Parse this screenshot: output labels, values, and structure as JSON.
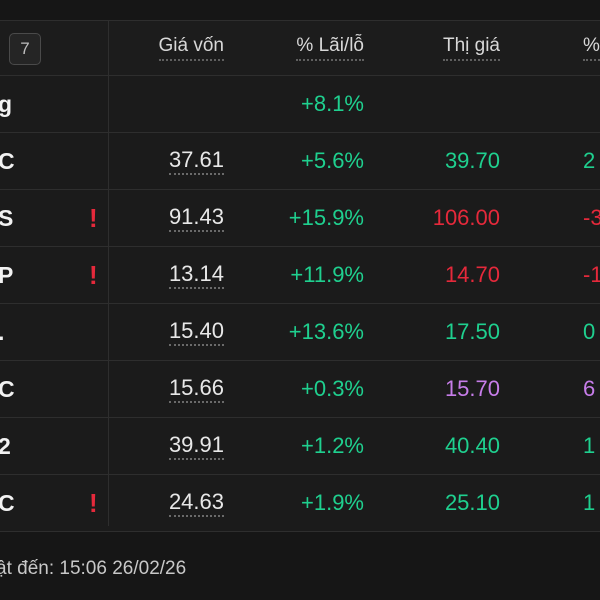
{
  "header": {
    "badge": "7",
    "col_cost": "Giá vốn",
    "col_pl": "% Lãi/lỗ",
    "col_market": "Thị giá",
    "col_pct": "% Th"
  },
  "total_row": {
    "symbol": "g",
    "pl": "+8.1%"
  },
  "rows": [
    {
      "symbol": "C",
      "warn": "",
      "cost": "37.61",
      "pl": "+5.6%",
      "market": "39.70",
      "market_color": "green",
      "pct": "2",
      "pct_color": "green"
    },
    {
      "symbol": "S",
      "warn": "!",
      "cost": "91.43",
      "pl": "+15.9%",
      "market": "106.00",
      "market_color": "red",
      "pct": "-3",
      "pct_color": "red"
    },
    {
      "symbol": "P",
      "warn": "!",
      "cost": "13.14",
      "pl": "+11.9%",
      "market": "14.70",
      "market_color": "red",
      "pct": "-1",
      "pct_color": "red"
    },
    {
      "symbol": ".",
      "warn": "",
      "cost": "15.40",
      "pl": "+13.6%",
      "market": "17.50",
      "market_color": "green",
      "pct": "0",
      "pct_color": "green"
    },
    {
      "symbol": "C",
      "warn": "",
      "cost": "15.66",
      "pl": "+0.3%",
      "market": "15.70",
      "market_color": "purple",
      "pct": "6",
      "pct_color": "purple"
    },
    {
      "symbol": "2",
      "warn": "",
      "cost": "39.91",
      "pl": "+1.2%",
      "market": "40.40",
      "market_color": "green",
      "pct": "1",
      "pct_color": "green"
    },
    {
      "symbol": "C",
      "warn": "!",
      "cost": "24.63",
      "pl": "+1.9%",
      "market": "25.10",
      "market_color": "green",
      "pct": "1",
      "pct_color": "green"
    }
  ],
  "footer": {
    "updated": "ật đến: 15:06 26/02/26"
  },
  "colors": {
    "green": "#1fd08f",
    "red": "#e5293b",
    "purple": "#c77dea",
    "background": "#161616"
  }
}
